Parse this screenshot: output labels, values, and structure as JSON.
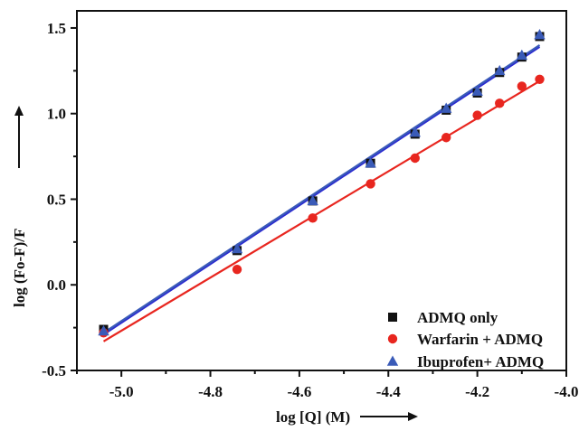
{
  "chart_data": {
    "type": "scatter",
    "xlabel": "log [Q] (M)",
    "ylabel": "log (Fo-F)/F",
    "xlim": [
      -5.1,
      -4.0
    ],
    "ylim": [
      -0.5,
      1.6
    ],
    "x_ticks": [
      -5.0,
      -4.8,
      -4.6,
      -4.4,
      -4.2,
      -4.0
    ],
    "x_tick_labels": [
      "-5.0",
      "-4.8",
      "-4.6",
      "-4.4",
      "-4.2",
      "-4.0"
    ],
    "y_ticks": [
      -0.5,
      0.0,
      0.5,
      1.0,
      1.5
    ],
    "y_tick_labels": [
      "-0.5",
      "0.0",
      "0.5",
      "1.0",
      "1.5"
    ],
    "grid": false,
    "legend_position": "bottom-right",
    "series": [
      {
        "name": "ADMQ only",
        "marker": "square",
        "color": "#111111",
        "fit_color": "#2b2bd0",
        "x": [
          -5.04,
          -4.74,
          -4.57,
          -4.44,
          -4.34,
          -4.27,
          -4.2,
          -4.15,
          -4.1,
          -4.06
        ],
        "y": [
          -0.26,
          0.2,
          0.49,
          0.71,
          0.88,
          1.02,
          1.12,
          1.24,
          1.33,
          1.45
        ],
        "fit": [
          [
            -5.04,
            -0.29
          ],
          [
            -4.06,
            1.39
          ]
        ]
      },
      {
        "name": "Warfarin + ADMQ",
        "marker": "circle",
        "color": "#e8261f",
        "fit_color": "#e8261f",
        "x": [
          -5.04,
          -4.74,
          -4.57,
          -4.44,
          -4.34,
          -4.27,
          -4.2,
          -4.15,
          -4.1,
          -4.06
        ],
        "y": [
          -0.28,
          0.09,
          0.39,
          0.59,
          0.74,
          0.86,
          0.99,
          1.06,
          1.16,
          1.2
        ],
        "fit": [
          [
            -5.04,
            -0.33
          ],
          [
            -4.06,
            1.19
          ]
        ]
      },
      {
        "name": "Ibuprofen+ ADMQ",
        "marker": "triangle",
        "color": "#3a5bb8",
        "fit_color": "#3a5bb8",
        "x": [
          -5.04,
          -4.74,
          -4.57,
          -4.44,
          -4.34,
          -4.27,
          -4.2,
          -4.15,
          -4.1,
          -4.06
        ],
        "y": [
          -0.27,
          0.21,
          0.49,
          0.71,
          0.89,
          1.03,
          1.13,
          1.25,
          1.34,
          1.46
        ],
        "fit": [
          [
            -5.04,
            -0.28
          ],
          [
            -4.06,
            1.4
          ]
        ]
      }
    ]
  }
}
